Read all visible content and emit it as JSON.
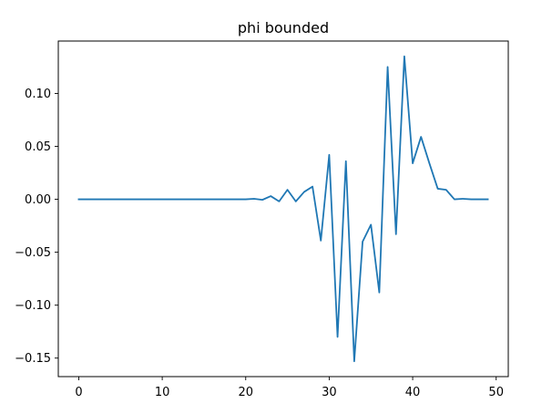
{
  "chart_data": {
    "type": "line",
    "title": "phi bounded",
    "xlabel": "",
    "ylabel": "",
    "xlim": [
      -2.45,
      51.45
    ],
    "ylim": [
      -0.1675,
      0.1495
    ],
    "xticks": [
      0,
      10,
      20,
      30,
      40,
      50
    ],
    "xtick_labels": [
      "0",
      "10",
      "20",
      "30",
      "40",
      "50"
    ],
    "yticks": [
      -0.15,
      -0.1,
      -0.05,
      0.0,
      0.05,
      0.1
    ],
    "ytick_labels": [
      "−0.15",
      "−0.10",
      "−0.05",
      "0.00",
      "0.05",
      "0.10"
    ],
    "grid": false,
    "series": [
      {
        "color": "#1f77b4",
        "x": [
          0,
          1,
          2,
          3,
          4,
          5,
          6,
          7,
          8,
          9,
          10,
          11,
          12,
          13,
          14,
          15,
          16,
          17,
          18,
          19,
          20,
          21,
          22,
          23,
          24,
          25,
          26,
          27,
          28,
          29,
          30,
          31,
          32,
          33,
          34,
          35,
          36,
          37,
          38,
          39,
          40,
          41,
          42,
          43,
          44,
          45,
          46,
          47,
          48,
          49
        ],
        "y": [
          0,
          0,
          0,
          0,
          0,
          0,
          0,
          0,
          0,
          0,
          0,
          0,
          0,
          0,
          0,
          0,
          0,
          0,
          0,
          0,
          0,
          0.0005,
          -0.0005,
          0.003,
          -0.002,
          0.009,
          -0.002,
          0.007,
          0.012,
          -0.039,
          0.042,
          -0.13,
          0.036,
          -0.153,
          -0.04,
          -0.024,
          -0.088,
          0.125,
          -0.033,
          0.135,
          0.034,
          0.059,
          0.034,
          0.01,
          0.009,
          0,
          0.0005,
          0,
          0,
          0
        ]
      }
    ]
  }
}
